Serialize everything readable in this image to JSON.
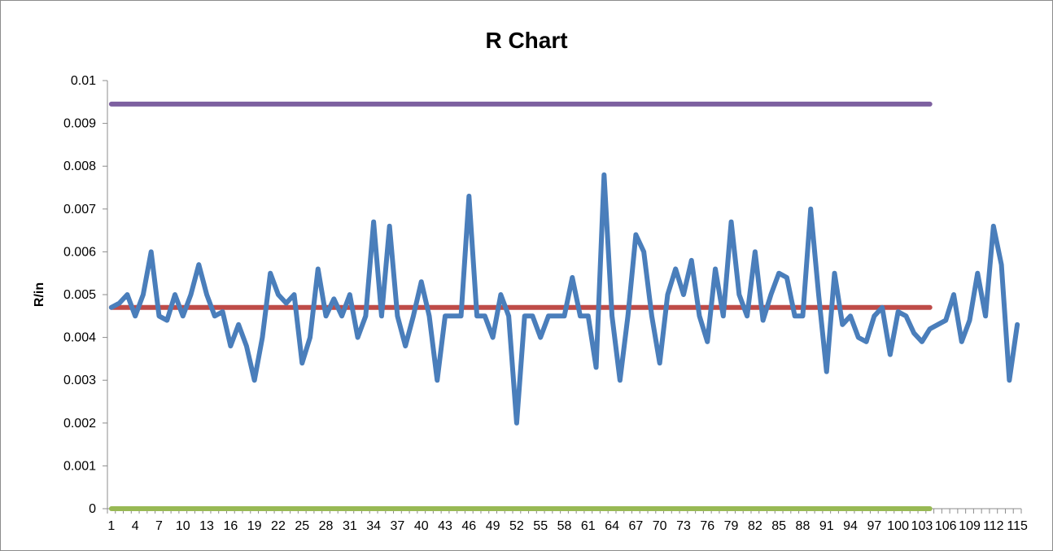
{
  "chart_data": {
    "type": "line",
    "title": "R Chart",
    "xlabel": "",
    "ylabel": "R/in",
    "ylim": [
      0,
      0.01
    ],
    "y_ticks": [
      "0",
      "0.001",
      "0.002",
      "0.003",
      "0.004",
      "0.005",
      "0.006",
      "0.007",
      "0.008",
      "0.009",
      "0.01"
    ],
    "x_range": [
      1,
      115
    ],
    "x_label_every": 3,
    "grid": false,
    "legend": "none",
    "series": [
      {
        "color": "#4a7ebb",
        "x_start": 1,
        "values": [
          0.0047,
          0.0048,
          0.005,
          0.0045,
          0.005,
          0.006,
          0.0045,
          0.0044,
          0.005,
          0.0045,
          0.005,
          0.0057,
          0.005,
          0.0045,
          0.0046,
          0.0038,
          0.0043,
          0.0038,
          0.003,
          0.004,
          0.0055,
          0.005,
          0.0048,
          0.005,
          0.0034,
          0.004,
          0.0056,
          0.0045,
          0.0049,
          0.0045,
          0.005,
          0.004,
          0.0045,
          0.0067,
          0.0045,
          0.0066,
          0.0045,
          0.0038,
          0.0045,
          0.0053,
          0.0045,
          0.003,
          0.0045,
          0.0045,
          0.0045,
          0.0073,
          0.0045,
          0.0045,
          0.004,
          0.005,
          0.0045,
          0.002,
          0.0045,
          0.0045,
          0.004,
          0.0045,
          0.0045,
          0.0045,
          0.0054,
          0.0045,
          0.0045,
          0.0033,
          0.0078,
          0.0045,
          0.003,
          0.0045,
          0.0064,
          0.006,
          0.0045,
          0.0034,
          0.005,
          0.0056,
          0.005,
          0.0058,
          0.0045,
          0.0039,
          0.0056,
          0.0045,
          0.0067,
          0.005,
          0.0045,
          0.006,
          0.0044,
          0.005,
          0.0055,
          0.0054,
          0.0045,
          0.0045,
          0.007,
          0.005,
          0.0032,
          0.0055,
          0.0043,
          0.0045,
          0.004,
          0.0039,
          0.0045,
          0.0047,
          0.0036,
          0.0046,
          0.0045,
          0.0041,
          0.0039,
          0.0042,
          0.0043,
          0.0044,
          0.005,
          0.0039,
          0.0044,
          0.0055,
          0.0045,
          0.0066,
          0.0057,
          0.003,
          0.0043
        ]
      },
      {
        "color": "#be4b48",
        "x": [
          1,
          104
        ],
        "values": [
          0.0047,
          0.0047
        ]
      },
      {
        "color": "#98b954",
        "x": [
          1,
          104
        ],
        "values": [
          0,
          0
        ]
      },
      {
        "color": "#7d60a0",
        "x": [
          1,
          104
        ],
        "values": [
          0.00945,
          0.00945
        ]
      }
    ]
  }
}
